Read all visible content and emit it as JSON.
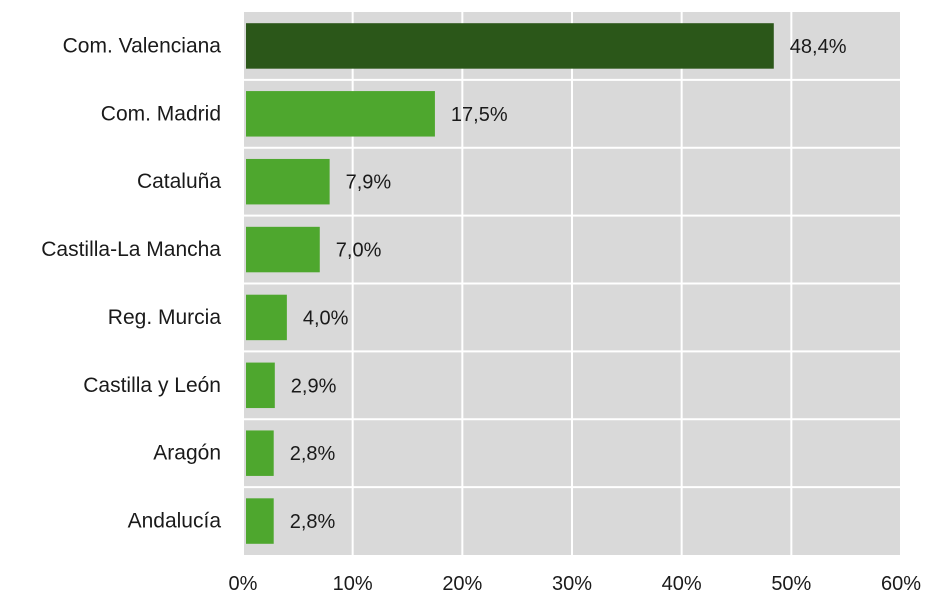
{
  "chart_data": {
    "type": "bar",
    "orientation": "horizontal",
    "title": "",
    "xlabel": "",
    "ylabel": "",
    "categories": [
      "Com. Valenciana",
      "Com. Madrid",
      "Cataluña",
      "Castilla-La Mancha",
      "Reg. Murcia",
      "Castilla y León",
      "Aragón",
      "Andalucía"
    ],
    "values": [
      48.4,
      17.5,
      7.9,
      7.0,
      4.0,
      2.9,
      2.8,
      2.8
    ],
    "value_labels": [
      "48,4%",
      "17,5%",
      "7,9%",
      "7,0%",
      "4,0%",
      "2,9%",
      "2,8%",
      "2,8%"
    ],
    "xlim": [
      0,
      60
    ],
    "xticks": [
      0,
      10,
      20,
      30,
      40,
      50,
      60
    ],
    "xtick_labels": [
      "0%",
      "10%",
      "20%",
      "30%",
      "40%",
      "50%",
      "60%"
    ],
    "grid": true,
    "legend": "none",
    "colors": {
      "plot_background": "#d9d9d9",
      "gridline": "#ffffff",
      "highlight_bar": "#2b5719",
      "bar": "#4ea72e"
    },
    "highlight_index": 0
  }
}
